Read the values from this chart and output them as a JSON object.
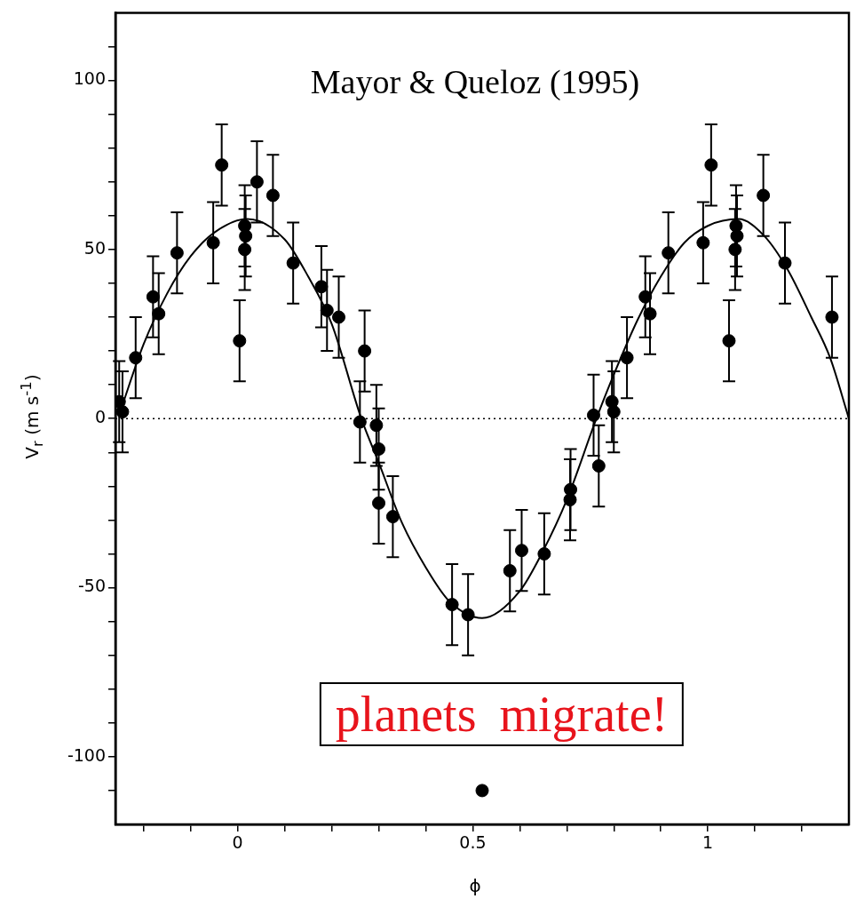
{
  "chart_data": {
    "type": "scatter",
    "xlabel": "ϕ",
    "ylabel": "V$_{r}$ (m s$^{-1}$)",
    "annotations": [
      "Mayor & Queloz (1995)",
      "planets migrate!"
    ],
    "xlim": [
      -0.26,
      1.3
    ],
    "ylim": [
      -120,
      120
    ],
    "xticks": [
      {
        "value": -0.2,
        "label": null
      },
      {
        "value": -0.1,
        "label": null
      },
      {
        "value": 0,
        "label": "0"
      },
      {
        "value": 0.1,
        "label": null
      },
      {
        "value": 0.2,
        "label": null
      },
      {
        "value": 0.3,
        "label": null
      },
      {
        "value": 0.4,
        "label": null
      },
      {
        "value": 0.5,
        "label": "0.5"
      },
      {
        "value": 0.6,
        "label": null
      },
      {
        "value": 0.7,
        "label": null
      },
      {
        "value": 0.8,
        "label": null
      },
      {
        "value": 0.9,
        "label": null
      },
      {
        "value": 1,
        "label": "1"
      },
      {
        "value": 1.1,
        "label": null
      },
      {
        "value": 1.2,
        "label": null
      }
    ],
    "yticks": [
      {
        "value": -110,
        "label": null
      },
      -100,
      {
        "value": -90,
        "label": null
      },
      {
        "value": -80,
        "label": null
      },
      {
        "value": -70,
        "label": null
      },
      {
        "value": -60,
        "label": null
      },
      -50,
      {
        "value": -40,
        "label": null
      },
      {
        "value": -30,
        "label": null
      },
      {
        "value": -20,
        "label": null
      },
      {
        "value": -10,
        "label": null
      },
      0,
      {
        "value": 10,
        "label": null
      },
      {
        "value": 20,
        "label": null
      },
      {
        "value": 30,
        "label": null
      },
      {
        "value": 40,
        "label": null
      },
      50,
      {
        "value": 60,
        "label": null
      },
      {
        "value": 70,
        "label": null
      },
      {
        "value": 80,
        "label": null
      },
      {
        "value": 90,
        "label": null
      },
      100,
      {
        "value": 110,
        "label": null
      }
    ],
    "grid": false,
    "legend": false,
    "ref_lines": [
      {
        "axis": "y",
        "value": 0,
        "color": "#000000",
        "line_style": "dotted"
      }
    ],
    "series": [
      {
        "marker": "circle",
        "color": "#000000",
        "x": [
          -0.252,
          -0.245,
          -0.217,
          -0.18,
          -0.168,
          -0.129,
          -0.052,
          -0.034,
          0.004,
          0.015,
          0.017,
          0.015,
          0.041,
          0.075,
          0.118,
          0.178,
          0.19,
          0.215,
          0.27,
          0.26,
          0.295,
          0.3,
          0.3,
          0.33,
          0.456,
          0.49,
          0.52,
          0.579,
          0.604,
          0.652,
          0.707,
          0.708,
          0.757,
          0.768,
          0.796,
          0.8,
          0.828,
          0.867,
          0.877,
          0.916,
          0.99,
          1.007,
          1.045,
          1.06,
          1.062,
          1.058,
          1.118,
          1.164,
          1.264
        ],
        "values": [
          5,
          2,
          18,
          36,
          31,
          49,
          52,
          75,
          23,
          57,
          54,
          50,
          70,
          66,
          46,
          39,
          32,
          30,
          20,
          -1,
          -2,
          -9,
          -25,
          -29,
          -55,
          -58,
          -110,
          -45,
          -39,
          -40,
          -24,
          -21,
          1,
          -14,
          5,
          2,
          18,
          36,
          31,
          49,
          52,
          75,
          23,
          57,
          54,
          50,
          66,
          46,
          30
        ],
        "errors": [
          12,
          12,
          12,
          12,
          12,
          12,
          12,
          12,
          12,
          12,
          12,
          12,
          12,
          12,
          12,
          12,
          12,
          12,
          12,
          12,
          12,
          12,
          12,
          12,
          12,
          12,
          null,
          12,
          12,
          12,
          12,
          12,
          12,
          12,
          12,
          12,
          12,
          12,
          12,
          12,
          12,
          12,
          12,
          12,
          12,
          12,
          12,
          12,
          12
        ]
      },
      {
        "type": "line",
        "marker": "none",
        "color": "#000000",
        "line_style": "solid",
        "x": [
          -0.25,
          -0.2,
          -0.15,
          -0.1,
          -0.05,
          0.02,
          0.1,
          0.15,
          0.2,
          0.263,
          0.3,
          0.35,
          0.4,
          0.45,
          0.52,
          0.6,
          0.65,
          0.7,
          0.763,
          0.8,
          0.85,
          0.9,
          0.95,
          1.0,
          1.065,
          1.12,
          1.17,
          1.22,
          1.26,
          1.3
        ],
        "values": [
          2,
          22,
          37,
          48,
          55,
          59,
          53,
          42,
          28,
          0,
          -13,
          -31,
          -44,
          -54,
          -59,
          -51,
          -39,
          -24,
          0,
          13,
          29,
          42,
          52,
          57,
          59,
          54,
          44,
          30,
          18,
          0
        ]
      }
    ]
  }
}
